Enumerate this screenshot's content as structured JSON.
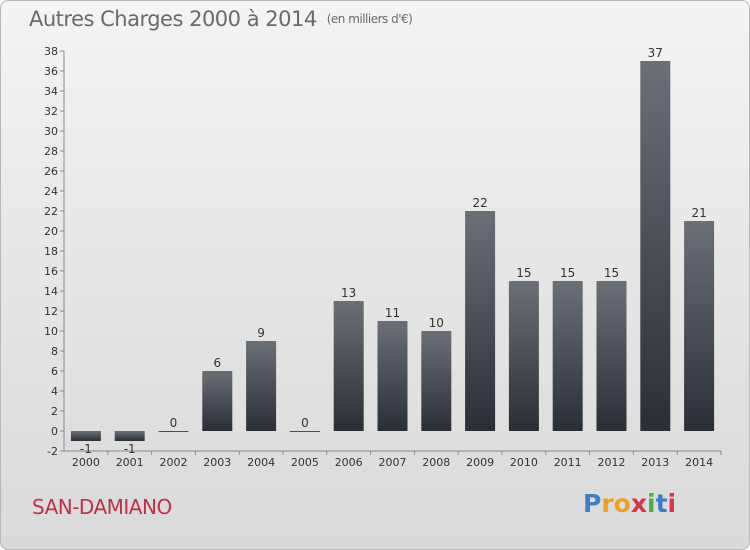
{
  "header": {
    "title": "Autres Charges 2000 à 2014",
    "subtitle": "(en milliers d'€)"
  },
  "footer": {
    "place": "SAN-DAMIANO",
    "logo_letters": [
      "P",
      "r",
      "o",
      "x",
      "i",
      "t",
      "i"
    ],
    "logo_colors": [
      "#3a7dc9",
      "#f0a020",
      "#f0a020",
      "#d8334a",
      "#4ab040",
      "#3a7dc9",
      "#d8334a"
    ]
  },
  "chart_data": {
    "type": "bar",
    "title": "Autres Charges 2000 à 2014",
    "subtitle": "(en milliers d'€)",
    "categories": [
      "2000",
      "2001",
      "2002",
      "2003",
      "2004",
      "2005",
      "2006",
      "2007",
      "2008",
      "2009",
      "2010",
      "2011",
      "2012",
      "2013",
      "2014"
    ],
    "values": [
      -1,
      -1,
      0,
      6,
      9,
      0,
      13,
      11,
      10,
      22,
      15,
      15,
      15,
      37,
      21
    ],
    "labels": [
      "-1",
      "-1",
      "0",
      "6",
      "9",
      "0",
      "13",
      "11",
      "10",
      "22",
      "15",
      "15",
      "15",
      "37",
      "21"
    ],
    "yticks": [
      "-2",
      "0",
      "2",
      "4",
      "6",
      "8",
      "10",
      "12",
      "14",
      "16",
      "18",
      "20",
      "22",
      "24",
      "26",
      "28",
      "30",
      "32",
      "34",
      "36",
      "38"
    ],
    "ylim": [
      -2,
      38
    ],
    "grid": false,
    "colors": {
      "bar_top": "#6b7077",
      "bar_bottom": "#2a2f35",
      "axis": "#8a8a8a",
      "text": "#333333"
    }
  }
}
